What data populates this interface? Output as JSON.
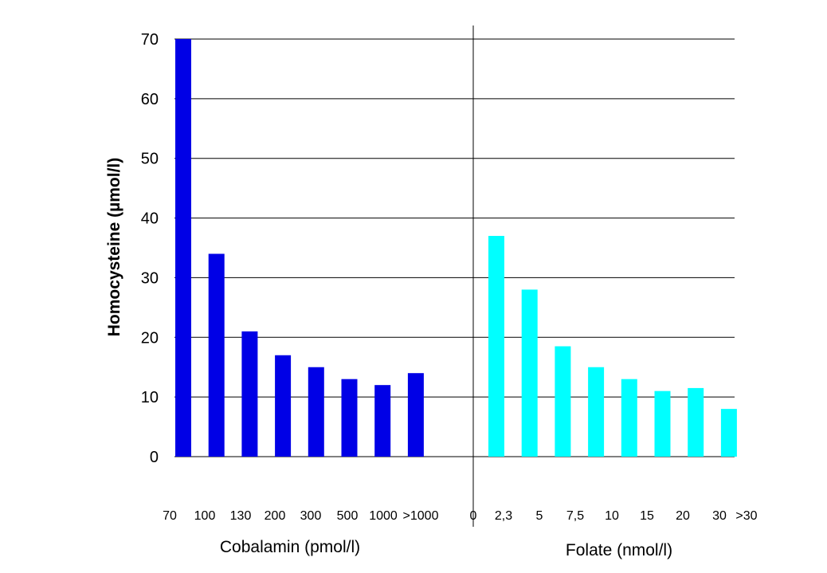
{
  "chart_data": {
    "type": "bar",
    "ylabel": "Homocysteine (µmol/l)",
    "ylim": [
      0,
      70
    ],
    "yticks": [
      "0",
      "10",
      "20",
      "30",
      "40",
      "50",
      "60",
      "70"
    ],
    "grid": true,
    "panels": [
      {
        "xlabel": "Cobalamin (pmol/l)",
        "color": "#0000E6",
        "tick_labels": [
          "70",
          "100",
          "130",
          "200",
          "300",
          "500",
          "1000",
          ">1000"
        ],
        "values": [
          70,
          34,
          21,
          17,
          15,
          13,
          12,
          14
        ]
      },
      {
        "xlabel": "Folate (nmol/l)",
        "color": "#00FFFF",
        "tick_labels": [
          "0",
          "2,3",
          "5",
          "7,5",
          "10",
          "15",
          "20",
          "30",
          ">30"
        ],
        "values": [
          37,
          28,
          18.5,
          15,
          13,
          11,
          11.5,
          8
        ]
      }
    ]
  }
}
